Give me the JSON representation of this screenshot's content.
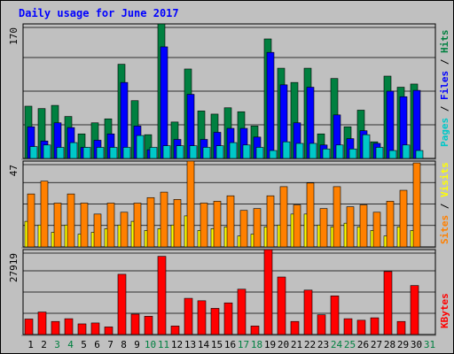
{
  "chart_data": [
    {
      "type": "bar",
      "title": "Daily usage for June 2017",
      "ymax_label": "170",
      "ylim": [
        0,
        170
      ],
      "categories": [
        1,
        2,
        3,
        4,
        5,
        6,
        7,
        8,
        9,
        10,
        11,
        12,
        13,
        14,
        15,
        16,
        17,
        18,
        19,
        20,
        21,
        22,
        23,
        24,
        25,
        26,
        27,
        28,
        29,
        30,
        31
      ],
      "weekend_days": [
        3,
        4,
        10,
        11,
        17,
        18,
        24,
        25,
        31
      ],
      "legend": [
        {
          "name": "Pages",
          "color": "#00c8c8"
        },
        {
          "name": "Files",
          "color": "#0000ff"
        },
        {
          "name": "Hits",
          "color": "#008040"
        }
      ],
      "series": [
        {
          "name": "Hits",
          "values": [
            66,
            63,
            67,
            53,
            31,
            45,
            50,
            119,
            73,
            30,
            170,
            46,
            113,
            60,
            56,
            64,
            59,
            41,
            151,
            114,
            96,
            114,
            31,
            101,
            40,
            61,
            21,
            104,
            90,
            94,
            0
          ]
        },
        {
          "name": "Files",
          "values": [
            40,
            22,
            45,
            39,
            14,
            23,
            31,
            96,
            41,
            11,
            141,
            24,
            81,
            24,
            33,
            38,
            38,
            27,
            134,
            93,
            45,
            90,
            17,
            55,
            25,
            35,
            19,
            85,
            78,
            86,
            0
          ]
        },
        {
          "name": "Pages",
          "values": [
            15,
            17,
            14,
            20,
            14,
            14,
            14,
            14,
            29,
            14,
            16,
            16,
            16,
            14,
            16,
            20,
            17,
            14,
            10,
            21,
            19,
            19,
            12,
            17,
            12,
            30,
            14,
            10,
            17,
            10,
            0
          ]
        }
      ]
    },
    {
      "type": "bar",
      "ymax_label": "47",
      "ylim": [
        0,
        47
      ],
      "legend": [
        {
          "name": "Sites",
          "color": "#ff8000"
        },
        {
          "name": "Visits",
          "color": "#ffff00"
        }
      ],
      "series": [
        {
          "name": "Visits",
          "values": [
            14,
            12,
            8,
            12,
            7,
            8,
            10,
            12,
            14,
            9,
            10,
            12,
            17,
            9,
            10,
            11,
            6,
            7,
            11,
            12,
            18,
            18,
            12,
            11,
            13,
            11,
            9,
            6,
            11,
            9,
            0
          ]
        },
        {
          "name": "Sites",
          "values": [
            29,
            36,
            24,
            29,
            24,
            18,
            24,
            19,
            24,
            27,
            30,
            26,
            47,
            24,
            25,
            28,
            20,
            21,
            28,
            33,
            23,
            35,
            21,
            33,
            22,
            23,
            19,
            25,
            31,
            46,
            0
          ]
        }
      ]
    },
    {
      "type": "bar",
      "ymax_label": "27919",
      "ylim": [
        0,
        27919
      ],
      "legend": [
        {
          "name": "KBytes",
          "color": "#ff0000"
        }
      ],
      "series": [
        {
          "name": "KBytes",
          "values": [
            5100,
            7400,
            4300,
            5200,
            3500,
            3800,
            2500,
            19800,
            6700,
            6000,
            25700,
            2800,
            11900,
            11100,
            8600,
            10400,
            14900,
            2800,
            27919,
            18900,
            4300,
            14600,
            6500,
            12700,
            5200,
            4700,
            5500,
            20700,
            4300,
            16100,
            0
          ]
        }
      ]
    }
  ]
}
